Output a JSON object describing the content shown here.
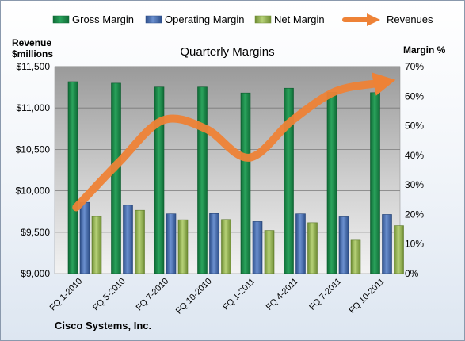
{
  "chart_data": {
    "type": "bar",
    "title": "Quarterly Margins",
    "company": "Cisco Systems, Inc.",
    "categories": [
      "FQ 1-2010",
      "FQ 5-2010",
      "FQ 7-2010",
      "FQ 10-2010",
      "FQ 1-2011",
      "FQ 4-2011",
      "FQ 7-2011",
      "FQ 10-2011"
    ],
    "series": [
      {
        "name": "Gross Margin",
        "type": "bar",
        "axis": "right",
        "color": "#1e8a4c",
        "values": [
          64.9,
          64.4,
          63.1,
          63.1,
          61.1,
          62.7,
          61.3,
          61.2
        ]
      },
      {
        "name": "Operating Margin",
        "type": "bar",
        "axis": "right",
        "color": "#4a70b3",
        "values": [
          24.1,
          23.1,
          20.2,
          20.3,
          17.6,
          20.2,
          19.2,
          20.0
        ]
      },
      {
        "name": "Net Margin",
        "type": "bar",
        "axis": "right",
        "color": "#95b651",
        "values": [
          19.3,
          21.4,
          18.2,
          18.3,
          14.6,
          17.2,
          11.3,
          16.2
        ]
      },
      {
        "name": "Revenues",
        "type": "line",
        "axis": "left",
        "color": "#ee8236",
        "values": [
          9800,
          10350,
          10850,
          10750,
          10400,
          10850,
          11200,
          11300
        ]
      }
    ],
    "y_left": {
      "label_line1": "Revenue",
      "label_line2": "$millions",
      "min": 9000,
      "max": 11500,
      "ticks": [
        "$9,000",
        "$9,500",
        "$10,000",
        "$10,500",
        "$11,000",
        "$11,500"
      ]
    },
    "y_right": {
      "label": "Margin %",
      "min": 0,
      "max": 70,
      "ticks": [
        "0%",
        "10%",
        "20%",
        "30%",
        "40%",
        "50%",
        "60%",
        "70%"
      ]
    },
    "grid": true,
    "legend": "top"
  }
}
